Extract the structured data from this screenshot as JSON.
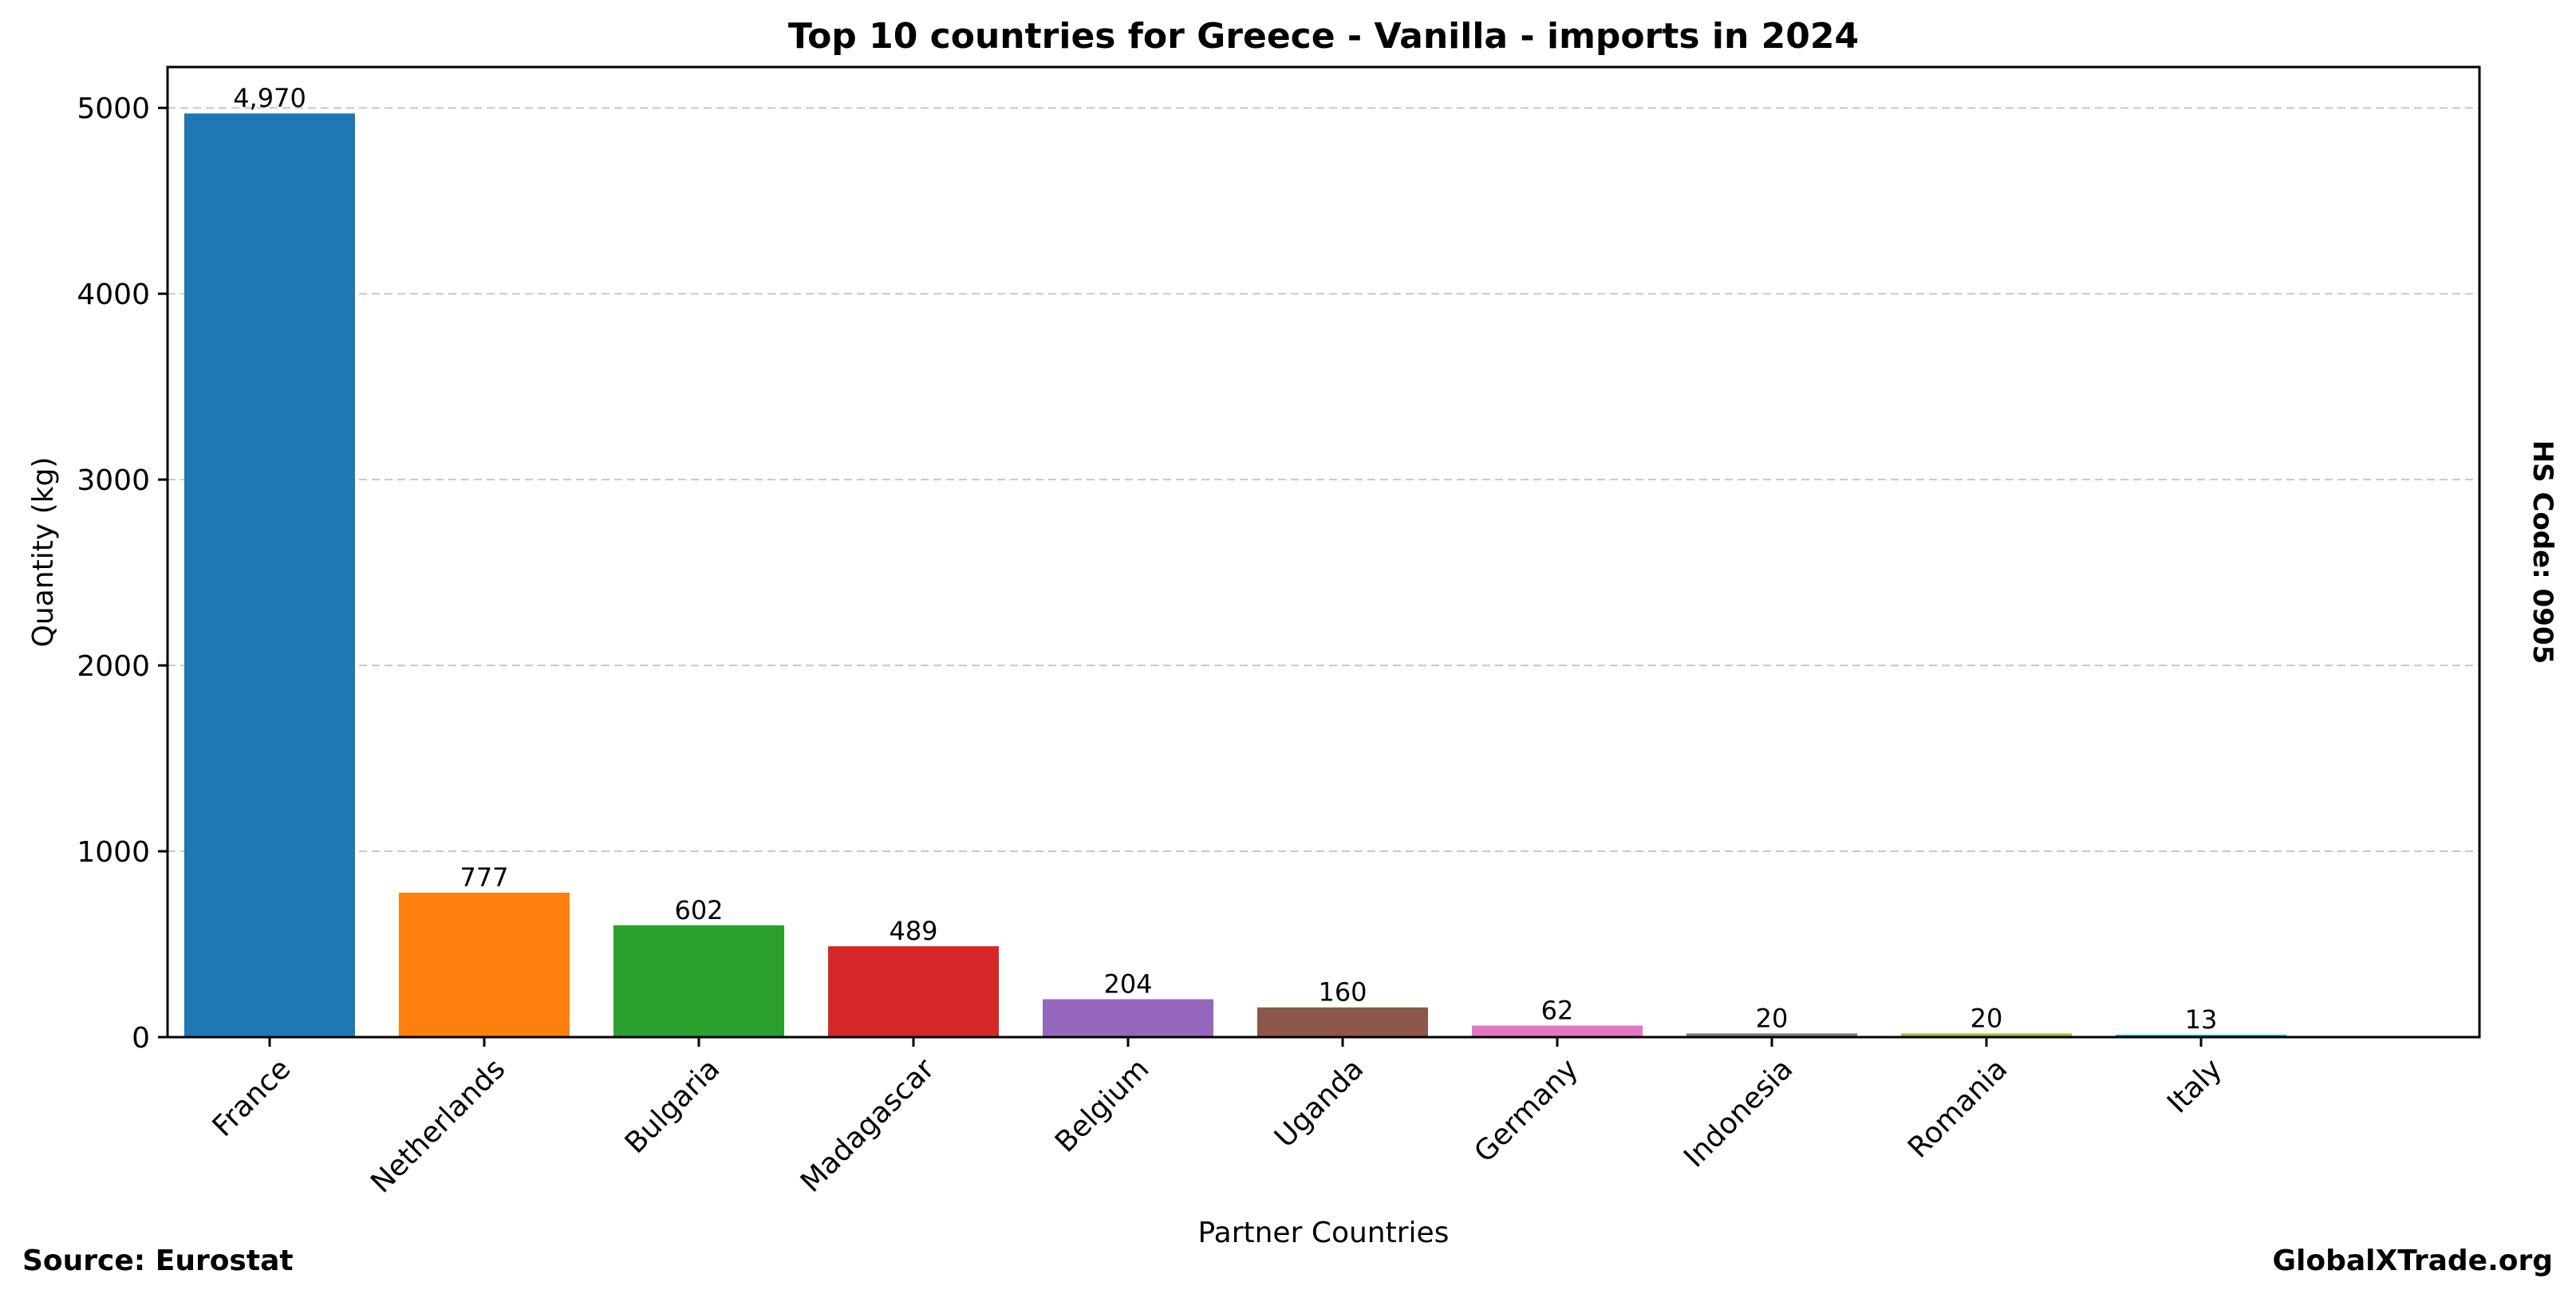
{
  "chart_data": {
    "type": "bar",
    "title": "Top 10 countries for Greece - Vanilla - imports in 2024",
    "xlabel": "Partner Countries",
    "ylabel": "Quantity (kg)",
    "categories": [
      "France",
      "Netherlands",
      "Bulgaria",
      "Madagascar",
      "Belgium",
      "Uganda",
      "Germany",
      "Indonesia",
      "Romania",
      "Italy"
    ],
    "values": [
      4970,
      777,
      602,
      489,
      204,
      160,
      62,
      20,
      20,
      13
    ],
    "value_labels": [
      "4,970",
      "777",
      "602",
      "489",
      "204",
      "160",
      "62",
      "20",
      "20",
      "13"
    ],
    "colors": [
      "#1f77b4",
      "#ff7f0e",
      "#2ca02c",
      "#d62728",
      "#9467bd",
      "#8c564b",
      "#e377c2",
      "#7f7f7f",
      "#bcbd22",
      "#17becf"
    ],
    "ylim": [
      0,
      5220
    ],
    "yticks": [
      0,
      1000,
      2000,
      3000,
      4000,
      5000
    ],
    "grid": "horizontal dashed",
    "legend": "none"
  },
  "annotations": {
    "right_note": "HS Code: 0905",
    "source": "Source: Eurostat",
    "brand": "GlobalXTrade.org"
  }
}
